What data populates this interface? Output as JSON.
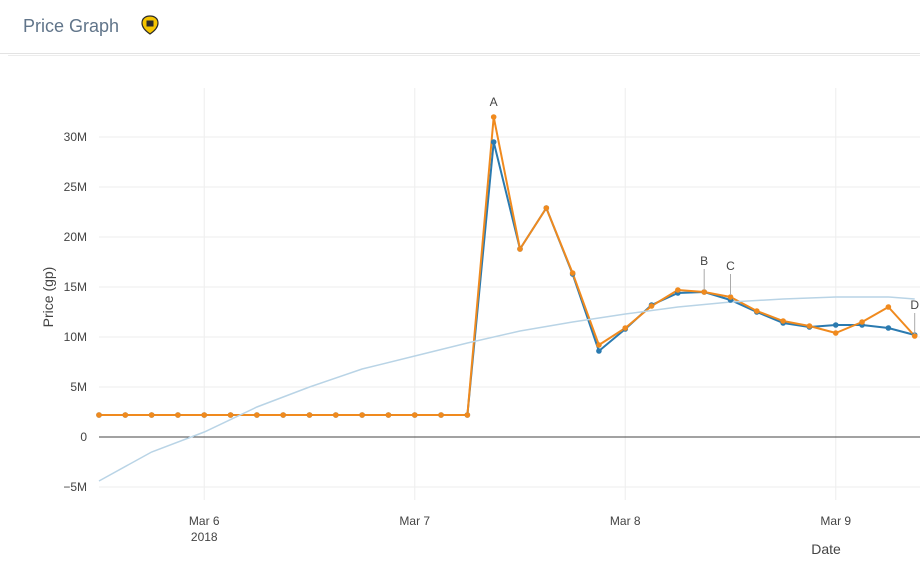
{
  "header": {
    "title": "Price Graph",
    "badge_icon": "members-badge-icon"
  },
  "chart_data": {
    "type": "line",
    "xlabel": "Date",
    "ylabel": "Price (gp)",
    "ylim": [
      -5000000,
      35000000
    ],
    "xlim": [
      0,
      3.9
    ],
    "x_ticks": [
      {
        "x": 0.5,
        "label": "Mar 6",
        "sublabel": "2018"
      },
      {
        "x": 1.5,
        "label": "Mar 7",
        "sublabel": ""
      },
      {
        "x": 2.5,
        "label": "Mar 8",
        "sublabel": ""
      },
      {
        "x": 3.5,
        "label": "Mar 9",
        "sublabel": ""
      }
    ],
    "y_ticks": [
      {
        "v": -5000000,
        "label": "−5M"
      },
      {
        "v": 0,
        "label": "0"
      },
      {
        "v": 5000000,
        "label": "5M"
      },
      {
        "v": 10000000,
        "label": "10M"
      },
      {
        "v": 15000000,
        "label": "15M"
      },
      {
        "v": 20000000,
        "label": "20M"
      },
      {
        "v": 25000000,
        "label": "25M"
      },
      {
        "v": 30000000,
        "label": "30M"
      }
    ],
    "grid": true,
    "series": [
      {
        "color": "#2a7ab0",
        "x": [
          0,
          0.125,
          0.25,
          0.375,
          0.5,
          0.625,
          0.75,
          0.875,
          1.0,
          1.125,
          1.25,
          1.375,
          1.5,
          1.625,
          1.75,
          1.875,
          2.0,
          2.125,
          2.25,
          2.375,
          2.5,
          2.625,
          2.75,
          2.875,
          3.0,
          3.125,
          3.25,
          3.375,
          3.5,
          3.625,
          3.75,
          3.875
        ],
        "values": [
          2200000,
          2200000,
          2200000,
          2200000,
          2200000,
          2200000,
          2200000,
          2200000,
          2200000,
          2200000,
          2200000,
          2200000,
          2200000,
          2200000,
          2200000,
          29500000,
          18800000,
          22900000,
          16300000,
          8600000,
          10800000,
          13200000,
          14400000,
          14500000,
          13700000,
          12500000,
          11400000,
          11000000,
          11200000,
          11200000,
          10900000,
          10200000
        ]
      },
      {
        "color": "#f08a1e",
        "x": [
          0,
          0.125,
          0.25,
          0.375,
          0.5,
          0.625,
          0.75,
          0.875,
          1.0,
          1.125,
          1.25,
          1.375,
          1.5,
          1.625,
          1.75,
          1.875,
          2.0,
          2.125,
          2.25,
          2.375,
          2.5,
          2.625,
          2.75,
          2.875,
          3.0,
          3.125,
          3.25,
          3.375,
          3.5,
          3.625,
          3.75,
          3.875
        ],
        "values": [
          2200000,
          2200000,
          2200000,
          2200000,
          2200000,
          2200000,
          2200000,
          2200000,
          2200000,
          2200000,
          2200000,
          2200000,
          2200000,
          2200000,
          2200000,
          32000000,
          18800000,
          22900000,
          16400000,
          9200000,
          10900000,
          13100000,
          14700000,
          14500000,
          14000000,
          12600000,
          11600000,
          11100000,
          10400000,
          11500000,
          13000000,
          10100000
        ]
      },
      {
        "color": "#b9d4e6",
        "style": "trend",
        "x": [
          0,
          0.25,
          0.5,
          0.75,
          1.0,
          1.25,
          1.5,
          1.75,
          2.0,
          2.25,
          2.5,
          2.75,
          3.0,
          3.25,
          3.5,
          3.75,
          3.875
        ],
        "values": [
          -4400000,
          -1500000,
          500000,
          3000000,
          5000000,
          6800000,
          8100000,
          9400000,
          10600000,
          11500000,
          12300000,
          13000000,
          13500000,
          13800000,
          14000000,
          14000000,
          13800000
        ]
      }
    ],
    "annotations": [
      {
        "label": "A",
        "x": 1.875,
        "y": 32000000
      },
      {
        "label": "B",
        "x": 2.875,
        "y": 14500000
      },
      {
        "label": "C",
        "x": 3.0,
        "y": 14000000
      },
      {
        "label": "D",
        "x": 3.875,
        "y": 10100000
      }
    ]
  }
}
